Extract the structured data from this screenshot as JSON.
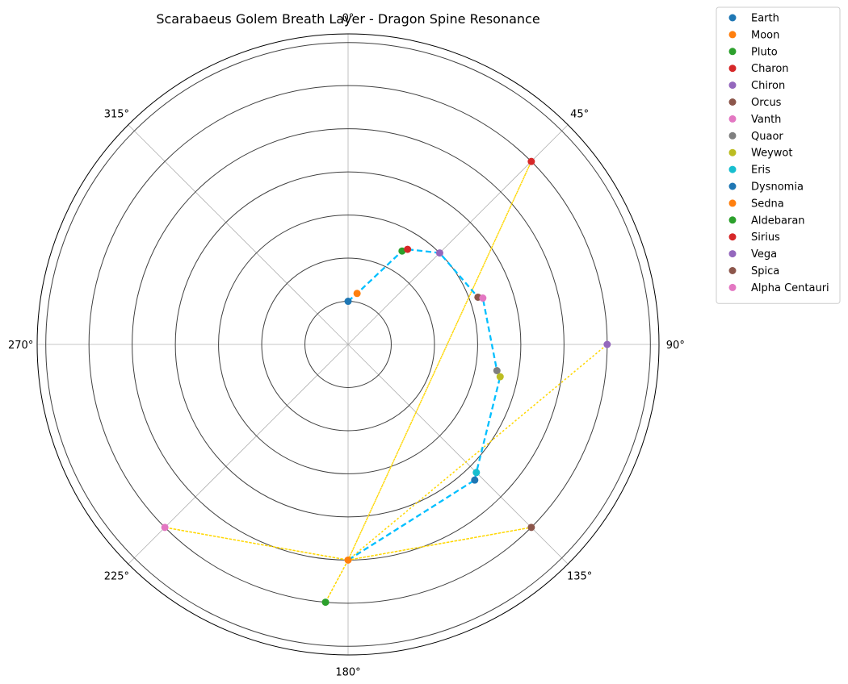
{
  "chart_data": {
    "type": "scatter",
    "projection": "polar",
    "title": "Scarabaeus Golem Breath Layer - Dragon Spine Resonance",
    "theta_direction": "clockwise",
    "theta_zero": "top",
    "theta_ticks": [
      "0°",
      "45°",
      "90°",
      "135°",
      "180°",
      "225°",
      "270°",
      "315°"
    ],
    "r_ticks": [
      1,
      2,
      3,
      4,
      5,
      6,
      7
    ],
    "r_tick_labels_visible": false,
    "rlim": [
      0,
      7.2
    ],
    "grid": true,
    "legend_position": "outside right, top",
    "colors": {
      "main_path": "#00bfff",
      "outer_path": "#ffd700",
      "r_gridline": "#404040",
      "theta_gridline": "#b0b0b0"
    },
    "main_path_style": "dashed",
    "outer_path_style": "dotted",
    "series": [
      {
        "name": "Earth",
        "theta": 0,
        "r": 1.0,
        "color": "#1f77b4"
      },
      {
        "name": "Moon",
        "theta": 10,
        "r": 1.2,
        "color": "#ff7f0e"
      },
      {
        "name": "Pluto",
        "theta": 30,
        "r": 2.5,
        "color": "#2ca02c"
      },
      {
        "name": "Charon",
        "theta": 32,
        "r": 2.6,
        "color": "#d62728"
      },
      {
        "name": "Chiron",
        "theta": 45,
        "r": 3.0,
        "color": "#9467bd"
      },
      {
        "name": "Orcus",
        "theta": 70,
        "r": 3.2,
        "color": "#8c564b"
      },
      {
        "name": "Vanth",
        "theta": 71,
        "r": 3.3,
        "color": "#e377c2"
      },
      {
        "name": "Quaor",
        "theta": 100,
        "r": 3.5,
        "color": "#7f7f7f"
      },
      {
        "name": "Weywot",
        "theta": 102,
        "r": 3.6,
        "color": "#bcbd22"
      },
      {
        "name": "Eris",
        "theta": 135,
        "r": 4.2,
        "color": "#17becf"
      },
      {
        "name": "Dysnomia",
        "theta": 137,
        "r": 4.3,
        "color": "#1f77b4"
      },
      {
        "name": "Sedna",
        "theta": 180,
        "r": 5.0,
        "color": "#ff7f0e"
      },
      {
        "name": "Aldebaran",
        "theta": 185,
        "r": 6.0,
        "color": "#2ca02c"
      },
      {
        "name": "Sirius",
        "theta": 45,
        "r": 6.0,
        "color": "#d62728"
      },
      {
        "name": "Vega",
        "theta": 90,
        "r": 6.0,
        "color": "#9467bd"
      },
      {
        "name": "Spica",
        "theta": 135,
        "r": 6.0,
        "color": "#8c564b"
      },
      {
        "name": "Alpha Centauri",
        "theta": 225,
        "r": 6.0,
        "color": "#e377c2"
      }
    ],
    "main_path": [
      "Earth",
      "Moon",
      "Pluto",
      "Charon",
      "Chiron",
      "Orcus",
      "Vanth",
      "Quaor",
      "Weywot",
      "Eris",
      "Dysnomia",
      "Sedna"
    ],
    "outer_path": [
      "Sedna",
      "Aldebaran",
      "Sedna",
      "Sirius",
      "Sedna",
      "Vega",
      "Sedna",
      "Spica",
      "Sedna",
      "Alpha Centauri",
      "Sedna"
    ]
  }
}
